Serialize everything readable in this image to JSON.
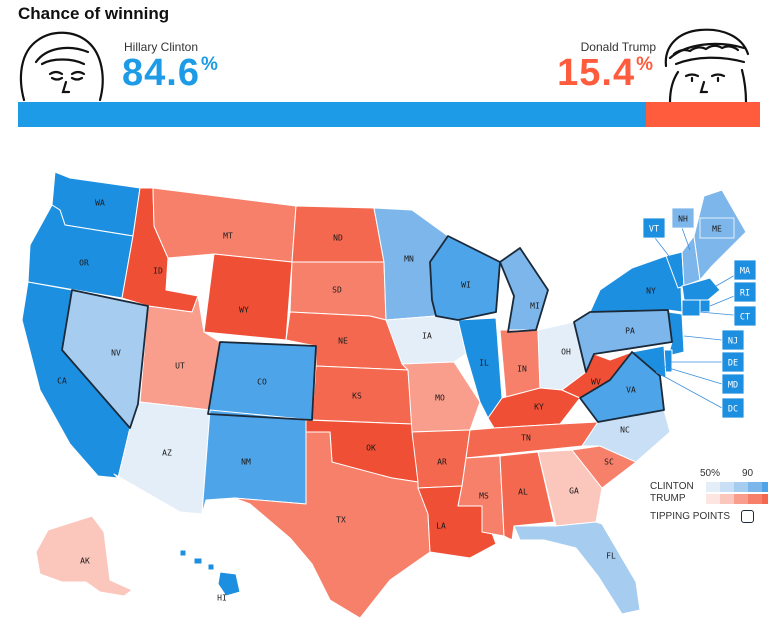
{
  "title": "Chance of winning",
  "candidates": {
    "clinton": {
      "name": "Hillary Clinton",
      "pct": "84.6",
      "unit": "%",
      "color": "#1d9be6",
      "share": 0.846
    },
    "trump": {
      "name": "Donald Trump",
      "pct": "15.4",
      "unit": "%",
      "color": "#ff5c3e",
      "share": 0.154
    }
  },
  "colors": {
    "clinton_scale": [
      "#e4eef9",
      "#c8dff5",
      "#a6ccf0",
      "#7db6eb",
      "#4ea4e8",
      "#1d8fe0"
    ],
    "trump_scale": [
      "#fde6e1",
      "#fbc6bc",
      "#f99d8c",
      "#f7806b",
      "#f4684f",
      "#ef4f35"
    ],
    "border": "#ffffff",
    "tipping_border": "#1a2a3a"
  },
  "legend": {
    "pct_low": "50%",
    "pct_high": "90",
    "clinton": "CLINTON",
    "trump": "TRUMP",
    "tipping": "TIPPING POINTS"
  },
  "states": [
    {
      "abbr": "WA",
      "party": "D",
      "level": 5
    },
    {
      "abbr": "OR",
      "party": "D",
      "level": 5
    },
    {
      "abbr": "CA",
      "party": "D",
      "level": 5
    },
    {
      "abbr": "NV",
      "party": "D",
      "level": 2,
      "tipping": true
    },
    {
      "abbr": "ID",
      "party": "R",
      "level": 5
    },
    {
      "abbr": "MT",
      "party": "R",
      "level": 3
    },
    {
      "abbr": "WY",
      "party": "R",
      "level": 5
    },
    {
      "abbr": "UT",
      "party": "R",
      "level": 2
    },
    {
      "abbr": "AZ",
      "party": "D",
      "level": 0
    },
    {
      "abbr": "CO",
      "party": "D",
      "level": 4,
      "tipping": true
    },
    {
      "abbr": "NM",
      "party": "D",
      "level": 4
    },
    {
      "abbr": "ND",
      "party": "R",
      "level": 4
    },
    {
      "abbr": "SD",
      "party": "R",
      "level": 3
    },
    {
      "abbr": "NE",
      "party": "R",
      "level": 4
    },
    {
      "abbr": "KS",
      "party": "R",
      "level": 4
    },
    {
      "abbr": "OK",
      "party": "R",
      "level": 5
    },
    {
      "abbr": "TX",
      "party": "R",
      "level": 3
    },
    {
      "abbr": "MN",
      "party": "D",
      "level": 3
    },
    {
      "abbr": "IA",
      "party": "D",
      "level": 0
    },
    {
      "abbr": "MO",
      "party": "R",
      "level": 2
    },
    {
      "abbr": "AR",
      "party": "R",
      "level": 4
    },
    {
      "abbr": "LA",
      "party": "R",
      "level": 5
    },
    {
      "abbr": "WI",
      "party": "D",
      "level": 4,
      "tipping": true
    },
    {
      "abbr": "IL",
      "party": "D",
      "level": 5
    },
    {
      "abbr": "MI",
      "party": "D",
      "level": 3,
      "tipping": true
    },
    {
      "abbr": "IN",
      "party": "R",
      "level": 3
    },
    {
      "abbr": "OH",
      "party": "D",
      "level": 0
    },
    {
      "abbr": "KY",
      "party": "R",
      "level": 5
    },
    {
      "abbr": "TN",
      "party": "R",
      "level": 4
    },
    {
      "abbr": "MS",
      "party": "R",
      "level": 3
    },
    {
      "abbr": "AL",
      "party": "R",
      "level": 4
    },
    {
      "abbr": "GA",
      "party": "R",
      "level": 1
    },
    {
      "abbr": "FL",
      "party": "D",
      "level": 2
    },
    {
      "abbr": "SC",
      "party": "R",
      "level": 3
    },
    {
      "abbr": "NC",
      "party": "D",
      "level": 1
    },
    {
      "abbr": "VA",
      "party": "D",
      "level": 4,
      "tipping": true
    },
    {
      "abbr": "WV",
      "party": "R",
      "level": 5
    },
    {
      "abbr": "PA",
      "party": "D",
      "level": 3,
      "tipping": true
    },
    {
      "abbr": "NY",
      "party": "D",
      "level": 5
    },
    {
      "abbr": "VT",
      "party": "D",
      "level": 5
    },
    {
      "abbr": "NH",
      "party": "D",
      "level": 3
    },
    {
      "abbr": "ME",
      "party": "D",
      "level": 3
    },
    {
      "abbr": "MA",
      "party": "D",
      "level": 5
    },
    {
      "abbr": "RI",
      "party": "D",
      "level": 5
    },
    {
      "abbr": "CT",
      "party": "D",
      "level": 5
    },
    {
      "abbr": "NJ",
      "party": "D",
      "level": 5
    },
    {
      "abbr": "DE",
      "party": "D",
      "level": 5
    },
    {
      "abbr": "MD",
      "party": "D",
      "level": 5
    },
    {
      "abbr": "DC",
      "party": "D",
      "level": 5
    },
    {
      "abbr": "AK",
      "party": "R",
      "level": 1
    },
    {
      "abbr": "HI",
      "party": "D",
      "level": 5
    }
  ]
}
